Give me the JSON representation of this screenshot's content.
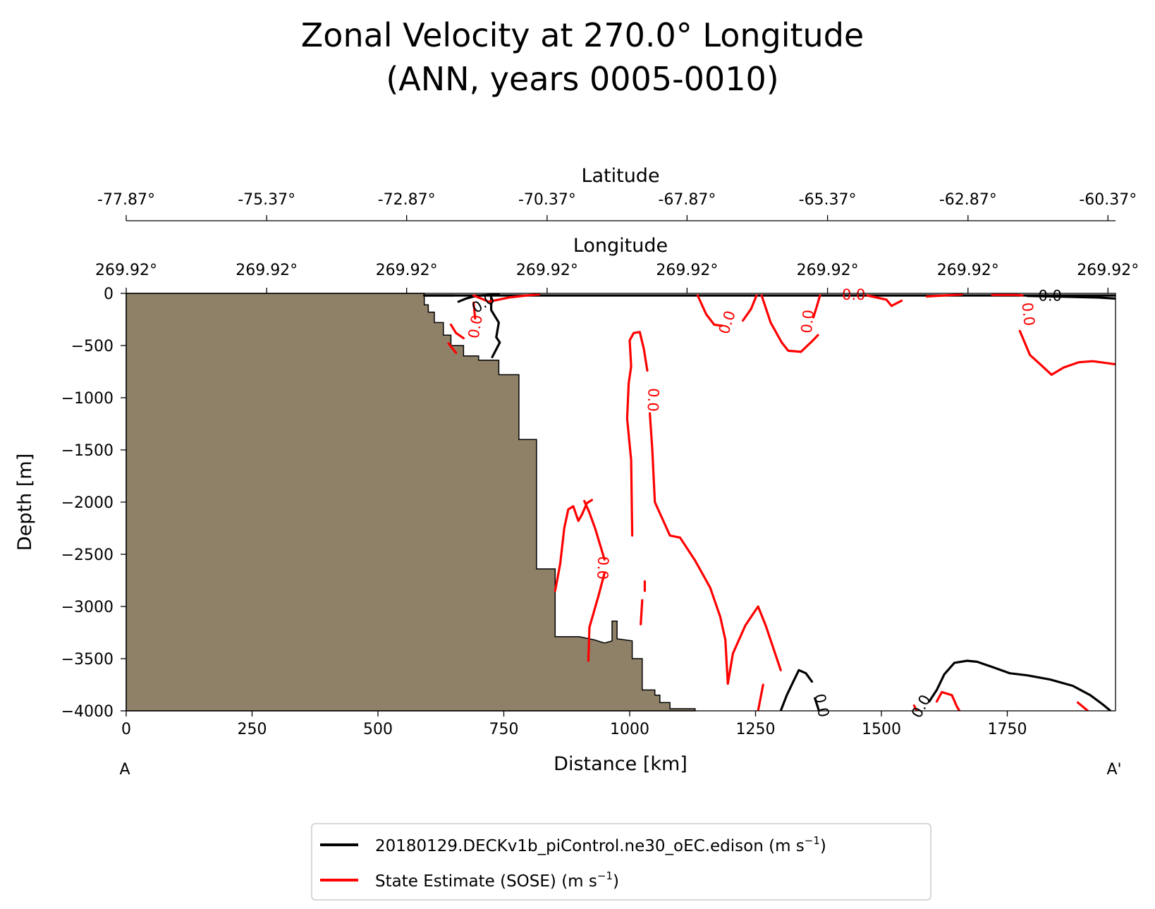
{
  "chart_data": {
    "type": "contour-section",
    "title_line1": "Zonal Velocity at 270.0° Longitude",
    "title_line2": "(ANN, years 0005-0010)",
    "xlabel": "Distance [km]",
    "ylabel": "Depth [m]",
    "xlim": [
      0,
      1965
    ],
    "ylim": [
      -4000,
      0
    ],
    "xticks": [
      0,
      250,
      500,
      750,
      1000,
      1250,
      1500,
      1750
    ],
    "yticks": [
      0,
      -500,
      -1000,
      -1500,
      -2000,
      -2500,
      -3000,
      -3500,
      -4000
    ],
    "xtick_labels": [
      "0",
      "250",
      "500",
      "750",
      "1000",
      "1250",
      "1500",
      "1750"
    ],
    "ytick_labels": [
      "0",
      "−500",
      "−1000",
      "−1500",
      "−2000",
      "−2500",
      "−3000",
      "−3500",
      "−4000"
    ],
    "latitude_axis": {
      "title": "Latitude",
      "ticks_km": [
        0,
        279,
        557,
        836,
        1114,
        1393,
        1672,
        1950
      ],
      "labels": [
        "-77.87°",
        "-75.37°",
        "-72.87°",
        "-70.37°",
        "-67.87°",
        "-65.37°",
        "-62.87°",
        "-60.37°"
      ]
    },
    "longitude_axis": {
      "title": "Longitude",
      "ticks_km": [
        0,
        279,
        557,
        836,
        1114,
        1393,
        1672,
        1950
      ],
      "labels": [
        "269.92°",
        "269.92°",
        "269.92°",
        "269.92°",
        "269.92°",
        "269.92°",
        "269.92°",
        "269.92°"
      ]
    },
    "endpoint_labels": {
      "start": "A",
      "end": "A'"
    },
    "bathymetry": {
      "color": "#8f8168",
      "points": [
        [
          0,
          -4000
        ],
        [
          0,
          0
        ],
        [
          592,
          0
        ],
        [
          592,
          -110
        ],
        [
          600,
          -110
        ],
        [
          600,
          -180
        ],
        [
          612,
          -180
        ],
        [
          612,
          -280
        ],
        [
          630,
          -280
        ],
        [
          630,
          -400
        ],
        [
          645,
          -400
        ],
        [
          645,
          -500
        ],
        [
          670,
          -500
        ],
        [
          670,
          -600
        ],
        [
          700,
          -600
        ],
        [
          700,
          -640
        ],
        [
          740,
          -640
        ],
        [
          740,
          -780
        ],
        [
          780,
          -780
        ],
        [
          780,
          -1400
        ],
        [
          815,
          -1400
        ],
        [
          815,
          -2640
        ],
        [
          852,
          -2640
        ],
        [
          852,
          -3290
        ],
        [
          900,
          -3290
        ],
        [
          930,
          -3320
        ],
        [
          950,
          -3350
        ],
        [
          965,
          -3330
        ],
        [
          965,
          -3140
        ],
        [
          975,
          -3140
        ],
        [
          975,
          -3310
        ],
        [
          1005,
          -3330
        ],
        [
          1005,
          -3500
        ],
        [
          1025,
          -3500
        ],
        [
          1025,
          -3800
        ],
        [
          1050,
          -3800
        ],
        [
          1050,
          -3850
        ],
        [
          1060,
          -3850
        ],
        [
          1060,
          -3920
        ],
        [
          1080,
          -3920
        ],
        [
          1080,
          -3980
        ],
        [
          1130,
          -3980
        ],
        [
          1130,
          -4000
        ]
      ]
    },
    "series": [
      {
        "name": "20180129.DECKv1b_piControl.ne30_oEC.edison",
        "units": "m s",
        "units_exp": "−1",
        "color": "#000000",
        "contours": [
          [
            [
              1300,
              -4000
            ],
            [
              1312,
              -3850
            ],
            [
              1325,
              -3720
            ],
            [
              1336,
              -3610
            ],
            [
              1350,
              -3640
            ],
            [
              1362,
              -3720
            ]
          ],
          [
            [
              1368,
              -3880
            ],
            [
              1376,
              -4000
            ]
          ],
          [
            [
              1595,
              -3910
            ],
            [
              1610,
              -3800
            ],
            [
              1625,
              -3650
            ],
            [
              1645,
              -3540
            ],
            [
              1670,
              -3520
            ],
            [
              1690,
              -3530
            ],
            [
              1720,
              -3580
            ],
            [
              1755,
              -3640
            ],
            [
              1790,
              -3660
            ],
            [
              1835,
              -3700
            ],
            [
              1880,
              -3760
            ],
            [
              1915,
              -3850
            ],
            [
              1940,
              -3940
            ],
            [
              1955,
              -4000
            ]
          ],
          [
            [
              660,
              -80
            ],
            [
              675,
              -50
            ],
            [
              690,
              -30
            ],
            [
              705,
              -20
            ],
            [
              740,
              -10
            ]
          ],
          [
            [
              725,
              -20
            ],
            [
              725,
              -160
            ],
            [
              740,
              -280
            ],
            [
              735,
              -420
            ],
            [
              742,
              -470
            ],
            [
              727,
              -610
            ]
          ],
          [
            [
              592,
              -20
            ],
            [
              650,
              -20
            ]
          ],
          [
            [
              592,
              -20
            ],
            [
              1965,
              -20
            ]
          ],
          [
            [
              1790,
              -25
            ],
            [
              1930,
              -40
            ],
            [
              1965,
              -50
            ]
          ]
        ],
        "labels": [
          {
            "text": "0.0",
            "x": 1380,
            "y": -3950,
            "angle": 78
          },
          {
            "text": "0.0",
            "x": 1580,
            "y": -3960,
            "angle": -62
          },
          {
            "text": "0.0",
            "x": 710,
            "y": -100,
            "angle": -32
          },
          {
            "text": "0.0",
            "x": 1835,
            "y": -30,
            "angle": 0
          }
        ]
      },
      {
        "name": "State Estimate (SOSE)",
        "units": "m s",
        "units_exp": "−1",
        "color": "#ff0000",
        "contours": [
          [
            [
              690,
              -90
            ],
            [
              693,
              -240
            ]
          ],
          [
            [
              645,
              -300
            ],
            [
              655,
              -380
            ],
            [
              670,
              -430
            ]
          ],
          [
            [
              640,
              -480
            ],
            [
              655,
              -570
            ]
          ],
          [
            [
              690,
              -20
            ],
            [
              720,
              -80
            ],
            [
              760,
              -40
            ],
            [
              795,
              -20
            ],
            [
              820,
              -10
            ]
          ],
          [
            [
              1005,
              -2320
            ],
            [
              1003,
              -1600
            ],
            [
              995,
              -1200
            ],
            [
              998,
              -860
            ],
            [
              1003,
              -700
            ],
            [
              1000,
              -450
            ],
            [
              1008,
              -380
            ],
            [
              1020,
              -370
            ],
            [
              1028,
              -530
            ],
            [
              1035,
              -740
            ]
          ],
          [
            [
              1040,
              -1150
            ],
            [
              1045,
              -1500
            ],
            [
              1050,
              -2000
            ],
            [
              1080,
              -2320
            ],
            [
              1100,
              -2340
            ],
            [
              1130,
              -2560
            ],
            [
              1160,
              -2820
            ],
            [
              1180,
              -3100
            ],
            [
              1190,
              -3320
            ],
            [
              1195,
              -3740
            ],
            [
              1205,
              -3450
            ],
            [
              1230,
              -3180
            ],
            [
              1255,
              -3000
            ],
            [
              1270,
              -3180
            ],
            [
              1300,
              -3610
            ]
          ],
          [
            [
              1265,
              -3750
            ],
            [
              1255,
              -4000
            ]
          ],
          [
            [
              950,
              -2680
            ],
            [
              938,
              -2900
            ],
            [
              920,
              -3200
            ],
            [
              918,
              -3520
            ]
          ],
          [
            [
              910,
              -1990
            ],
            [
              920,
              -2100
            ],
            [
              932,
              -2260
            ],
            [
              950,
              -2550
            ]
          ],
          [
            [
              852,
              -2850
            ],
            [
              862,
              -2590
            ],
            [
              870,
              -2250
            ],
            [
              878,
              -2070
            ],
            [
              888,
              -2040
            ],
            [
              898,
              -2180
            ],
            [
              905,
              -2120
            ],
            [
              915,
              -2010
            ],
            [
              925,
              -1980
            ]
          ],
          [
            [
              1025,
              -2940
            ],
            [
              1022,
              -3170
            ]
          ],
          [
            [
              1030,
              -2760
            ],
            [
              1030,
              -2850
            ]
          ],
          [
            [
              1135,
              -20
            ],
            [
              1152,
              -200
            ],
            [
              1168,
              -300
            ],
            [
              1183,
              -310
            ]
          ],
          [
            [
              1225,
              -260
            ],
            [
              1241,
              -150
            ],
            [
              1252,
              -20
            ]
          ],
          [
            [
              1262,
              -20
            ],
            [
              1280,
              -280
            ],
            [
              1302,
              -470
            ],
            [
              1315,
              -550
            ],
            [
              1340,
              -560
            ],
            [
              1362,
              -460
            ],
            [
              1374,
              -400
            ]
          ],
          [
            [
              1365,
              -230
            ],
            [
              1372,
              -120
            ],
            [
              1378,
              -20
            ]
          ],
          [
            [
              1472,
              -20
            ],
            [
              1510,
              -60
            ],
            [
              1520,
              -120
            ],
            [
              1540,
              -70
            ]
          ],
          [
            [
              1590,
              -30
            ],
            [
              1625,
              -20
            ],
            [
              1660,
              -10
            ]
          ],
          [
            [
              1720,
              -15
            ],
            [
              1770,
              -15
            ],
            [
              1780,
              -20
            ]
          ],
          [
            [
              1775,
              -360
            ],
            [
              1795,
              -590
            ],
            [
              1820,
              -700
            ],
            [
              1838,
              -780
            ],
            [
              1862,
              -710
            ],
            [
              1892,
              -660
            ],
            [
              1920,
              -650
            ],
            [
              1965,
              -680
            ]
          ],
          [
            [
              1610,
              -3910
            ],
            [
              1620,
              -3820
            ],
            [
              1640,
              -3850
            ],
            [
              1650,
              -3960
            ],
            [
              1655,
              -4000
            ]
          ],
          [
            [
              1565,
              -3950
            ],
            [
              1570,
              -4000
            ]
          ],
          [
            [
              1890,
              -3920
            ],
            [
              1905,
              -3980
            ],
            [
              1910,
              -4000
            ]
          ]
        ],
        "labels": [
          {
            "text": "0.0",
            "x": 695,
            "y": -320,
            "angle": -80
          },
          {
            "text": "0.0",
            "x": 1045,
            "y": -1020,
            "angle": 92
          },
          {
            "text": "0.0",
            "x": 945,
            "y": -2630,
            "angle": 92
          },
          {
            "text": "0.0",
            "x": 1195,
            "y": -280,
            "angle": -72
          },
          {
            "text": "0.0",
            "x": 1355,
            "y": -270,
            "angle": -84
          },
          {
            "text": "0.0",
            "x": 1445,
            "y": -20,
            "angle": 0
          },
          {
            "text": "0.0",
            "x": 1790,
            "y": -200,
            "angle": 84
          }
        ]
      }
    ],
    "legend": {
      "position": "bottom-center"
    }
  }
}
